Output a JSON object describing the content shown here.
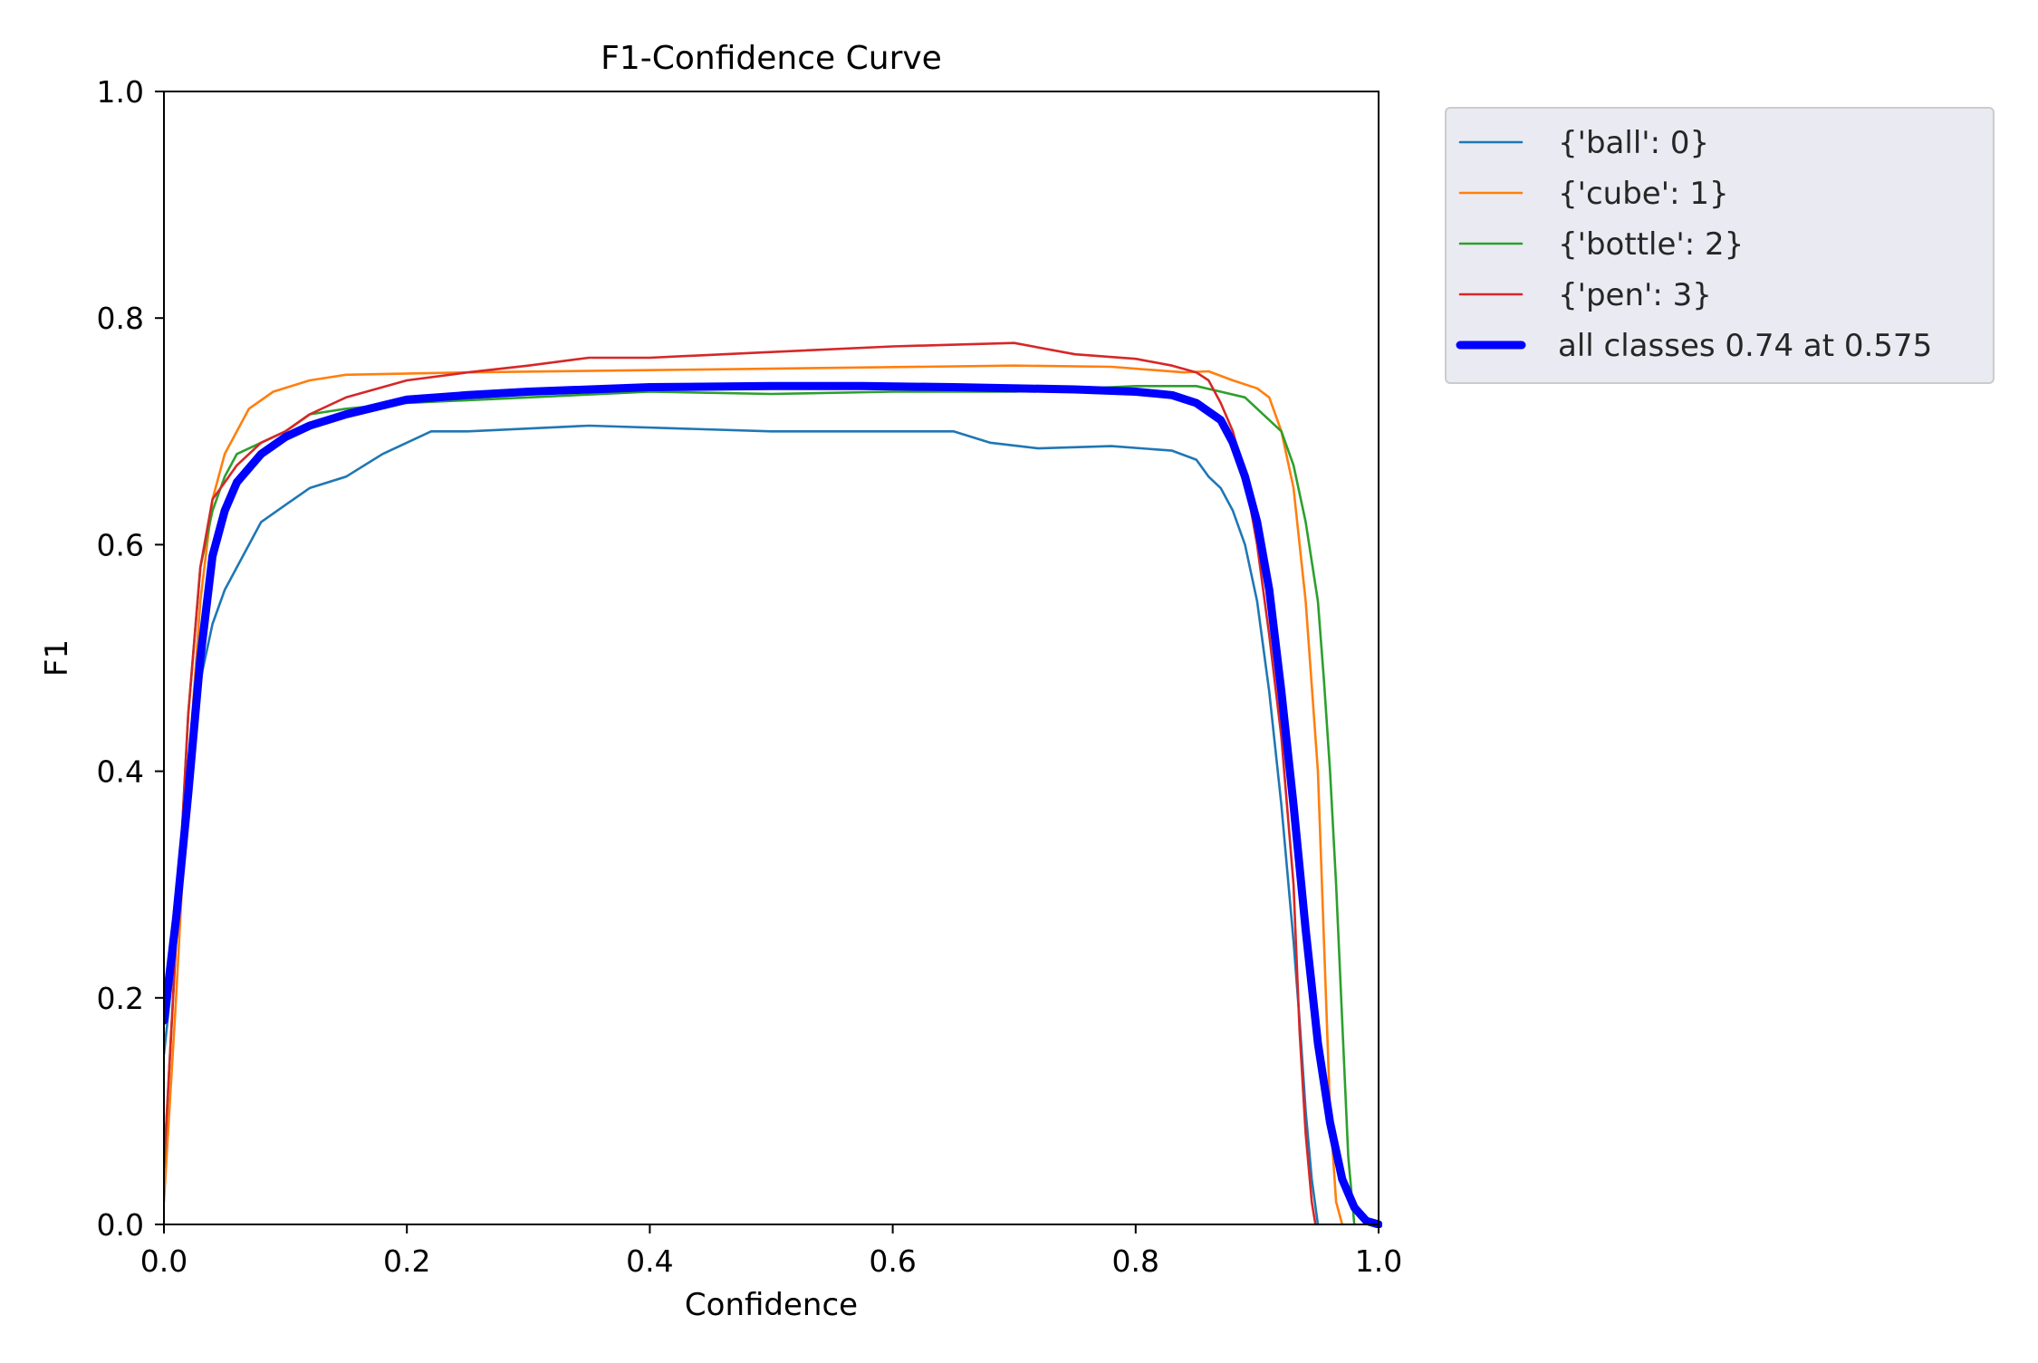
{
  "chart_data": {
    "type": "line",
    "title": "F1-Confidence Curve",
    "xlabel": "Confidence",
    "ylabel": "F1",
    "xlim": [
      0.0,
      1.0
    ],
    "ylim": [
      0.0,
      1.0
    ],
    "x_ticks": [
      "0.0",
      "0.2",
      "0.4",
      "0.6",
      "0.8",
      "1.0"
    ],
    "y_ticks": [
      "0.0",
      "0.2",
      "0.4",
      "0.6",
      "0.8",
      "1.0"
    ],
    "grid": false,
    "legend_position": "outside upper right",
    "series": [
      {
        "name": "{'ball': 0}",
        "color": "#1f77b4",
        "width": "thin",
        "points": [
          [
            0.0,
            0.15
          ],
          [
            0.01,
            0.25
          ],
          [
            0.02,
            0.38
          ],
          [
            0.03,
            0.48
          ],
          [
            0.04,
            0.53
          ],
          [
            0.05,
            0.56
          ],
          [
            0.06,
            0.58
          ],
          [
            0.07,
            0.6
          ],
          [
            0.08,
            0.62
          ],
          [
            0.1,
            0.635
          ],
          [
            0.12,
            0.65
          ],
          [
            0.15,
            0.66
          ],
          [
            0.18,
            0.68
          ],
          [
            0.2,
            0.69
          ],
          [
            0.22,
            0.7
          ],
          [
            0.25,
            0.7
          ],
          [
            0.35,
            0.705
          ],
          [
            0.5,
            0.7
          ],
          [
            0.65,
            0.7
          ],
          [
            0.68,
            0.69
          ],
          [
            0.72,
            0.685
          ],
          [
            0.78,
            0.687
          ],
          [
            0.83,
            0.683
          ],
          [
            0.85,
            0.675
          ],
          [
            0.86,
            0.66
          ],
          [
            0.87,
            0.65
          ],
          [
            0.88,
            0.63
          ],
          [
            0.89,
            0.6
          ],
          [
            0.9,
            0.55
          ],
          [
            0.91,
            0.47
          ],
          [
            0.92,
            0.37
          ],
          [
            0.93,
            0.25
          ],
          [
            0.935,
            0.18
          ],
          [
            0.94,
            0.1
          ],
          [
            0.945,
            0.04
          ],
          [
            0.95,
            0.0
          ]
        ]
      },
      {
        "name": "{'cube': 1}",
        "color": "#ff7f0e",
        "width": "thin",
        "points": [
          [
            0.0,
            0.02
          ],
          [
            0.01,
            0.2
          ],
          [
            0.02,
            0.4
          ],
          [
            0.03,
            0.55
          ],
          [
            0.04,
            0.64
          ],
          [
            0.05,
            0.68
          ],
          [
            0.06,
            0.7
          ],
          [
            0.07,
            0.72
          ],
          [
            0.09,
            0.735
          ],
          [
            0.12,
            0.745
          ],
          [
            0.15,
            0.75
          ],
          [
            0.25,
            0.752
          ],
          [
            0.4,
            0.754
          ],
          [
            0.55,
            0.756
          ],
          [
            0.7,
            0.758
          ],
          [
            0.78,
            0.757
          ],
          [
            0.84,
            0.752
          ],
          [
            0.86,
            0.753
          ],
          [
            0.88,
            0.745
          ],
          [
            0.9,
            0.738
          ],
          [
            0.91,
            0.73
          ],
          [
            0.92,
            0.7
          ],
          [
            0.93,
            0.65
          ],
          [
            0.94,
            0.55
          ],
          [
            0.95,
            0.4
          ],
          [
            0.955,
            0.25
          ],
          [
            0.96,
            0.1
          ],
          [
            0.965,
            0.02
          ],
          [
            0.97,
            0.0
          ]
        ]
      },
      {
        "name": "{'bottle': 2}",
        "color": "#2ca02c",
        "width": "thin",
        "points": [
          [
            0.0,
            0.05
          ],
          [
            0.01,
            0.25
          ],
          [
            0.02,
            0.45
          ],
          [
            0.03,
            0.58
          ],
          [
            0.04,
            0.63
          ],
          [
            0.05,
            0.66
          ],
          [
            0.06,
            0.68
          ],
          [
            0.08,
            0.69
          ],
          [
            0.1,
            0.7
          ],
          [
            0.12,
            0.715
          ],
          [
            0.15,
            0.72
          ],
          [
            0.2,
            0.725
          ],
          [
            0.3,
            0.73
          ],
          [
            0.4,
            0.735
          ],
          [
            0.5,
            0.733
          ],
          [
            0.6,
            0.735
          ],
          [
            0.7,
            0.735
          ],
          [
            0.8,
            0.74
          ],
          [
            0.85,
            0.74
          ],
          [
            0.87,
            0.735
          ],
          [
            0.89,
            0.73
          ],
          [
            0.91,
            0.71
          ],
          [
            0.92,
            0.7
          ],
          [
            0.93,
            0.67
          ],
          [
            0.94,
            0.62
          ],
          [
            0.95,
            0.55
          ],
          [
            0.955,
            0.48
          ],
          [
            0.96,
            0.4
          ],
          [
            0.965,
            0.3
          ],
          [
            0.97,
            0.18
          ],
          [
            0.975,
            0.06
          ],
          [
            0.98,
            0.0
          ]
        ]
      },
      {
        "name": "{'pen': 3}",
        "color": "#d62728",
        "width": "thin",
        "points": [
          [
            0.0,
            0.05
          ],
          [
            0.01,
            0.25
          ],
          [
            0.02,
            0.45
          ],
          [
            0.03,
            0.58
          ],
          [
            0.04,
            0.64
          ],
          [
            0.05,
            0.655
          ],
          [
            0.06,
            0.67
          ],
          [
            0.08,
            0.69
          ],
          [
            0.1,
            0.7
          ],
          [
            0.12,
            0.715
          ],
          [
            0.15,
            0.73
          ],
          [
            0.2,
            0.745
          ],
          [
            0.25,
            0.752
          ],
          [
            0.3,
            0.758
          ],
          [
            0.35,
            0.765
          ],
          [
            0.4,
            0.765
          ],
          [
            0.5,
            0.77
          ],
          [
            0.6,
            0.775
          ],
          [
            0.7,
            0.778
          ],
          [
            0.75,
            0.768
          ],
          [
            0.8,
            0.764
          ],
          [
            0.83,
            0.758
          ],
          [
            0.85,
            0.752
          ],
          [
            0.86,
            0.745
          ],
          [
            0.87,
            0.725
          ],
          [
            0.88,
            0.7
          ],
          [
            0.89,
            0.66
          ],
          [
            0.9,
            0.6
          ],
          [
            0.91,
            0.52
          ],
          [
            0.92,
            0.43
          ],
          [
            0.93,
            0.3
          ],
          [
            0.935,
            0.17
          ],
          [
            0.94,
            0.08
          ],
          [
            0.945,
            0.02
          ],
          [
            0.948,
            0.0
          ]
        ]
      },
      {
        "name": "all classes 0.74 at 0.575",
        "color": "#0000ff",
        "width": "thick",
        "points": [
          [
            0.0,
            0.18
          ],
          [
            0.01,
            0.27
          ],
          [
            0.02,
            0.38
          ],
          [
            0.03,
            0.5
          ],
          [
            0.04,
            0.59
          ],
          [
            0.05,
            0.63
          ],
          [
            0.06,
            0.655
          ],
          [
            0.08,
            0.68
          ],
          [
            0.1,
            0.695
          ],
          [
            0.12,
            0.705
          ],
          [
            0.15,
            0.715
          ],
          [
            0.2,
            0.728
          ],
          [
            0.25,
            0.732
          ],
          [
            0.3,
            0.735
          ],
          [
            0.4,
            0.739
          ],
          [
            0.5,
            0.74
          ],
          [
            0.575,
            0.74
          ],
          [
            0.65,
            0.739
          ],
          [
            0.75,
            0.737
          ],
          [
            0.8,
            0.735
          ],
          [
            0.83,
            0.732
          ],
          [
            0.85,
            0.725
          ],
          [
            0.87,
            0.71
          ],
          [
            0.88,
            0.69
          ],
          [
            0.89,
            0.66
          ],
          [
            0.9,
            0.62
          ],
          [
            0.91,
            0.56
          ],
          [
            0.92,
            0.47
          ],
          [
            0.93,
            0.37
          ],
          [
            0.94,
            0.26
          ],
          [
            0.95,
            0.16
          ],
          [
            0.96,
            0.09
          ],
          [
            0.97,
            0.04
          ],
          [
            0.98,
            0.015
          ],
          [
            0.99,
            0.003
          ],
          [
            1.0,
            0.0
          ]
        ]
      }
    ]
  }
}
